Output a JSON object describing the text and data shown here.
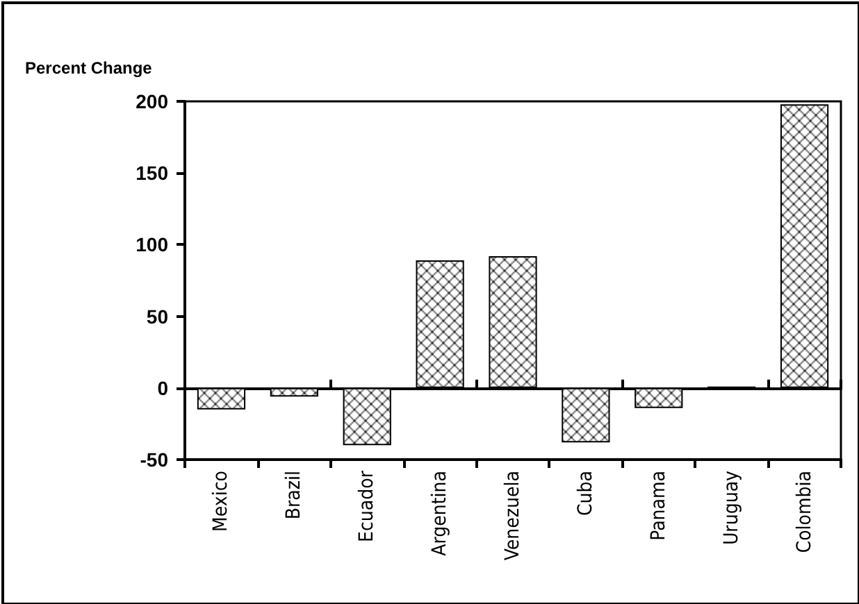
{
  "chart_data": {
    "type": "bar",
    "ylabel": "Percent Change",
    "categories": [
      "Mexico",
      "Brazil",
      "Ecuador",
      "Argentina",
      "Venezuela",
      "Cuba",
      "Panama",
      "Uruguay",
      "Colombia"
    ],
    "values": [
      -15,
      -6,
      -40,
      89,
      92,
      -38,
      -14,
      1,
      198
    ],
    "color": "#000000",
    "ylim": [
      -50,
      200
    ],
    "yticks": [
      -50,
      0,
      50,
      100,
      150,
      200
    ]
  }
}
